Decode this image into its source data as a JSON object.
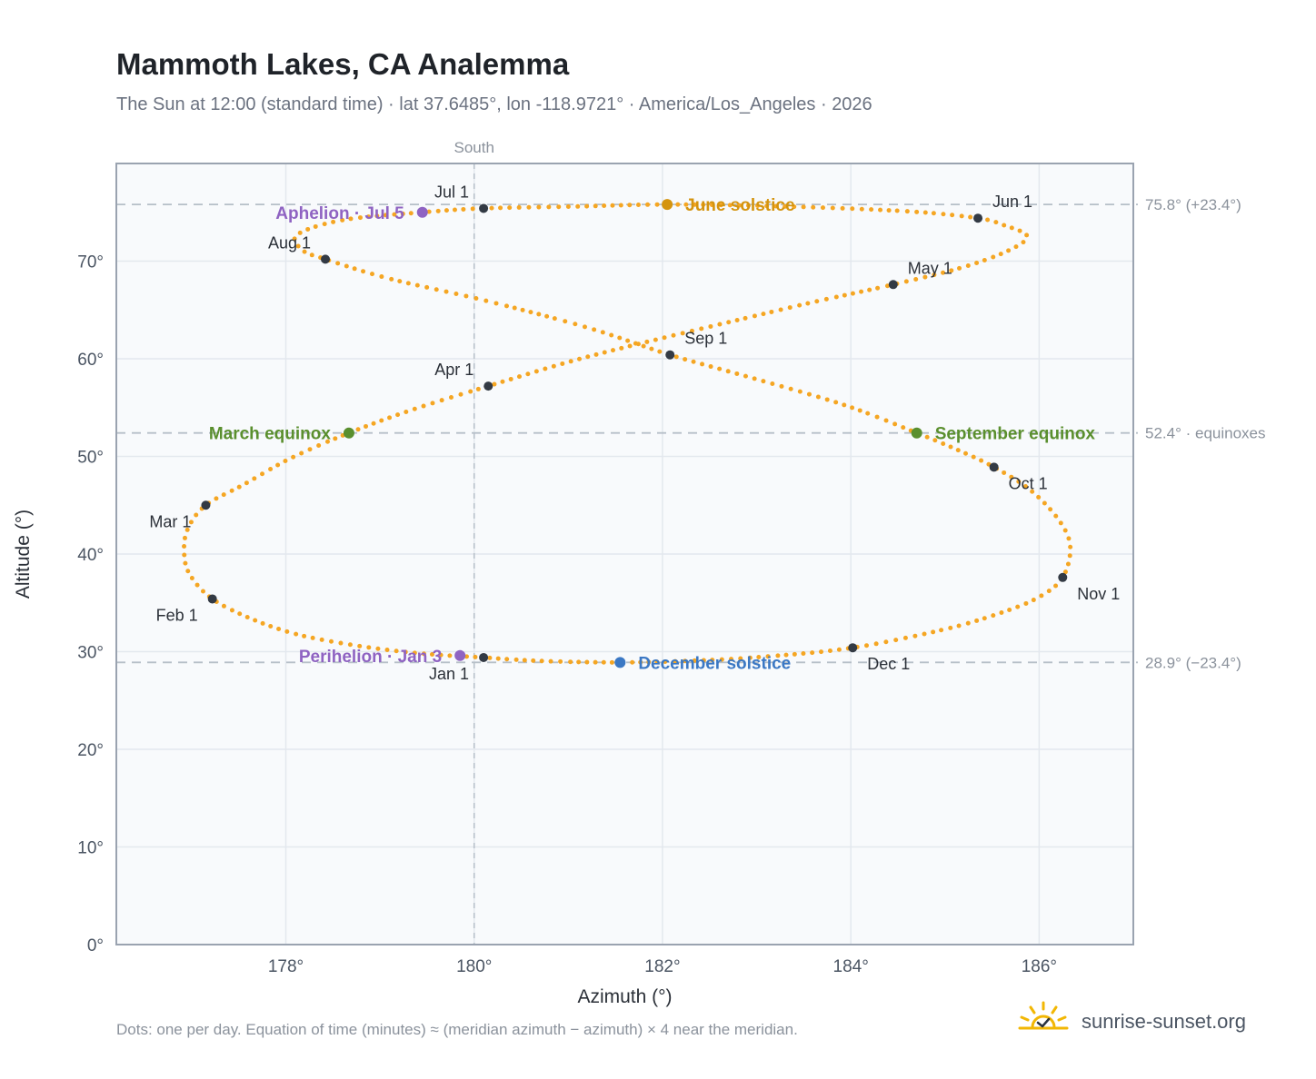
{
  "header": {
    "title": "Mammoth Lakes, CA Analemma",
    "subtitle": "The Sun at 12:00 (standard time) · lat 37.6485°, lon -118.9721° · America/Los_Angeles · 2026"
  },
  "footer": {
    "note": "Dots: one per day. Equation of time (minutes) ≈ (meridian azimuth − azimuth) × 4 near the meridian.",
    "brand": "sunrise-sunset.org"
  },
  "colors": {
    "path": "#f5a623",
    "month_marker": "#333a44",
    "june_solstice": "#d4940f",
    "december_solstice": "#3b78c4",
    "equinox": "#5a8f2e",
    "apsis": "#8f63c2",
    "plot_bg": "#f8fafc",
    "grid": "#e3e8ee",
    "reference_line": "#b6bfc8"
  },
  "chart_data": {
    "type": "scatter",
    "xlabel": "Azimuth (°)",
    "ylabel": "Altitude (°)",
    "xlim": [
      176.2,
      187.0
    ],
    "ylim": [
      0,
      80
    ],
    "x_ticks": [
      178,
      180,
      182,
      184,
      186
    ],
    "x_tick_labels": [
      "178°",
      "180°",
      "182°",
      "184°",
      "186°"
    ],
    "y_ticks": [
      0,
      10,
      20,
      30,
      40,
      50,
      60,
      70
    ],
    "y_tick_labels": [
      "0°",
      "10°",
      "20°",
      "30°",
      "40°",
      "50°",
      "60°",
      "70°"
    ],
    "grid": true,
    "meridian": {
      "azimuth": 180,
      "label": "South"
    },
    "reference_lines": [
      {
        "altitude": 75.8,
        "label": "75.8° (+23.4°)"
      },
      {
        "altitude": 52.4,
        "label": "52.4° · equinoxes"
      },
      {
        "altitude": 28.9,
        "label": "28.9° (−23.4°)"
      }
    ],
    "path_points": [
      [
        180.1,
        29.4
      ],
      [
        179.45,
        29.8
      ],
      [
        178.8,
        30.55
      ],
      [
        178.15,
        31.7
      ],
      [
        177.65,
        33.3
      ],
      [
        177.22,
        35.4
      ],
      [
        176.98,
        37.9
      ],
      [
        176.92,
        40.2
      ],
      [
        176.96,
        42.6
      ],
      [
        177.15,
        45.0
      ],
      [
        177.55,
        47.1
      ],
      [
        178.05,
        49.8
      ],
      [
        178.67,
        52.4
      ],
      [
        179.35,
        54.8
      ],
      [
        180.15,
        57.2
      ],
      [
        181.05,
        59.8
      ],
      [
        181.95,
        62.0
      ],
      [
        182.9,
        64.2
      ],
      [
        183.6,
        65.8
      ],
      [
        184.45,
        67.6
      ],
      [
        185.2,
        69.4
      ],
      [
        185.7,
        71.2
      ],
      [
        185.87,
        72.6
      ],
      [
        185.62,
        73.7
      ],
      [
        185.35,
        74.4
      ],
      [
        184.6,
        75.1
      ],
      [
        183.3,
        75.6
      ],
      [
        182.05,
        75.8
      ],
      [
        181.1,
        75.6
      ],
      [
        180.1,
        75.4
      ],
      [
        179.45,
        75.0
      ],
      [
        178.6,
        74.2
      ],
      [
        178.12,
        72.7
      ],
      [
        178.18,
        71.1
      ],
      [
        178.42,
        70.2
      ],
      [
        179.1,
        68.2
      ],
      [
        180.1,
        66.0
      ],
      [
        181.2,
        63.2
      ],
      [
        182.08,
        60.4
      ],
      [
        183.0,
        57.9
      ],
      [
        183.95,
        55.2
      ],
      [
        184.7,
        52.4
      ],
      [
        185.15,
        50.6
      ],
      [
        185.52,
        48.9
      ],
      [
        185.9,
        46.6
      ],
      [
        186.2,
        43.6
      ],
      [
        186.33,
        40.8
      ],
      [
        186.25,
        37.6
      ],
      [
        186.0,
        35.6
      ],
      [
        185.6,
        34.0
      ],
      [
        185.0,
        32.3
      ],
      [
        184.02,
        30.4
      ],
      [
        183.1,
        29.5
      ],
      [
        182.4,
        29.1
      ],
      [
        181.55,
        28.9
      ],
      [
        180.7,
        29.05
      ],
      [
        180.1,
        29.4
      ]
    ],
    "month_markers": [
      {
        "label": "Jan 1",
        "az": 180.1,
        "alt": 29.4,
        "anchor": "bottom-left"
      },
      {
        "label": "Feb 1",
        "az": 177.22,
        "alt": 35.4,
        "anchor": "bottom-left"
      },
      {
        "label": "Mar 1",
        "az": 177.15,
        "alt": 45.0,
        "anchor": "bottom-left"
      },
      {
        "label": "Apr 1",
        "az": 180.15,
        "alt": 57.2,
        "anchor": "top-left"
      },
      {
        "label": "May 1",
        "az": 184.45,
        "alt": 67.6,
        "anchor": "top-right"
      },
      {
        "label": "Jun 1",
        "az": 185.35,
        "alt": 74.4,
        "anchor": "top-right"
      },
      {
        "label": "Jul 1",
        "az": 180.1,
        "alt": 75.4,
        "anchor": "top-left"
      },
      {
        "label": "Aug 1",
        "az": 178.42,
        "alt": 70.2,
        "anchor": "top-left"
      },
      {
        "label": "Sep 1",
        "az": 182.08,
        "alt": 60.4,
        "anchor": "top-right"
      },
      {
        "label": "Oct 1",
        "az": 185.52,
        "alt": 48.9,
        "anchor": "bottom-right"
      },
      {
        "label": "Nov 1",
        "az": 186.25,
        "alt": 37.6,
        "anchor": "bottom-right"
      },
      {
        "label": "Dec 1",
        "az": 184.02,
        "alt": 30.4,
        "anchor": "bottom-right"
      }
    ],
    "events": [
      {
        "label": "June solstice",
        "az": 182.05,
        "alt": 75.8,
        "color_key": "june_solstice",
        "side": "right"
      },
      {
        "label": "December solstice",
        "az": 181.55,
        "alt": 28.9,
        "color_key": "december_solstice",
        "side": "right"
      },
      {
        "label": "March equinox",
        "az": 178.67,
        "alt": 52.4,
        "color_key": "equinox",
        "side": "left"
      },
      {
        "label": "September equinox",
        "az": 184.7,
        "alt": 52.4,
        "color_key": "equinox",
        "side": "right"
      },
      {
        "label": "Aphelion · Jul 5",
        "az": 179.45,
        "alt": 75.0,
        "color_key": "apsis",
        "side": "left"
      },
      {
        "label": "Perihelion · Jan 3",
        "az": 179.85,
        "alt": 29.6,
        "color_key": "apsis",
        "side": "left"
      }
    ]
  }
}
